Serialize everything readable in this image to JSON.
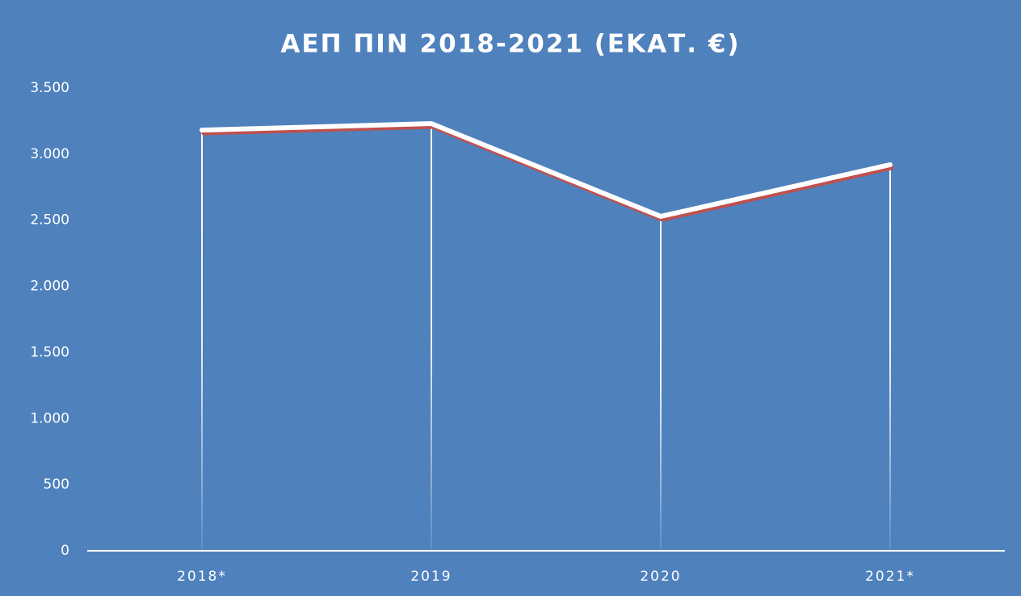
{
  "chart_data": {
    "type": "line",
    "title": "ΑΕΠ ΠΙΝ 2018-2021 (ΕΚΑΤ. €)",
    "categories": [
      "2018*",
      "2019",
      "2020",
      "2021*"
    ],
    "series": [
      {
        "name": "ΑΕΠ",
        "color": "#ffffff",
        "shadow_color": "#c0504d",
        "values": [
          3182,
          3231,
          2529,
          2920
        ]
      }
    ],
    "ylim": [
      0,
      3500
    ],
    "yticks": [
      0,
      500,
      {
        "value": 1000,
        "label": "1.000"
      },
      {
        "value": 1500,
        "label": "1.500"
      },
      {
        "value": 2000,
        "label": "2.000"
      },
      {
        "value": 2500,
        "label": "2.500"
      },
      {
        "value": 3000,
        "label": "3.000"
      },
      {
        "value": 3500,
        "label": "3.500"
      }
    ],
    "grid": false,
    "drop_lines": true,
    "background": "#4f81bd"
  }
}
